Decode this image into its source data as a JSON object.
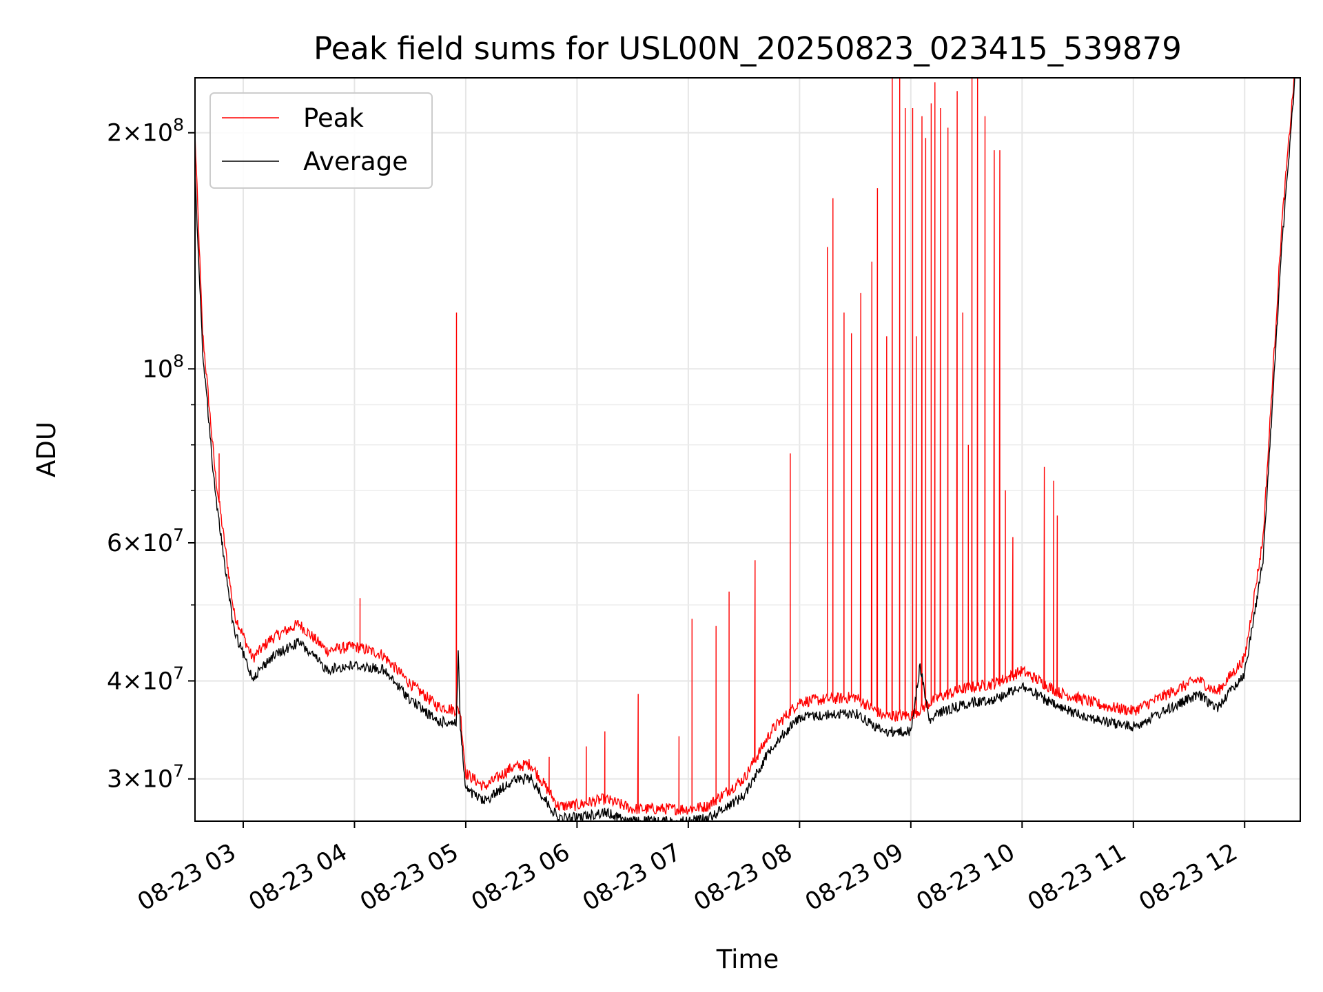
{
  "chart_data": {
    "type": "line",
    "title": "Peak field sums for USL00N_20250823_023415_539879",
    "xlabel": "Time",
    "ylabel": "ADU",
    "yscale": "log",
    "ylim": [
      26500000,
      235000000
    ],
    "xlim": [
      "2025-08-23 02:34",
      "2025-08-23 12:30"
    ],
    "grid": true,
    "legend_position": "upper left",
    "x_ticks": [
      {
        "t": "2025-08-23 03:00",
        "label": "08-23 03"
      },
      {
        "t": "2025-08-23 04:00",
        "label": "08-23 04"
      },
      {
        "t": "2025-08-23 05:00",
        "label": "08-23 05"
      },
      {
        "t": "2025-08-23 06:00",
        "label": "08-23 06"
      },
      {
        "t": "2025-08-23 07:00",
        "label": "08-23 07"
      },
      {
        "t": "2025-08-23 08:00",
        "label": "08-23 08"
      },
      {
        "t": "2025-08-23 09:00",
        "label": "08-23 09"
      },
      {
        "t": "2025-08-23 10:00",
        "label": "08-23 10"
      },
      {
        "t": "2025-08-23 11:00",
        "label": "08-23 11"
      },
      {
        "t": "2025-08-23 12:00",
        "label": "08-23 12"
      }
    ],
    "y_major_ticks": [
      {
        "v": 30000000,
        "mant": "3",
        "exp": "7"
      },
      {
        "v": 40000000,
        "mant": "4",
        "exp": "7"
      },
      {
        "v": 60000000,
        "mant": "6",
        "exp": "7"
      },
      {
        "v": 100000000,
        "mant": "",
        "exp": "8"
      },
      {
        "v": 200000000,
        "mant": "2",
        "exp": "8"
      }
    ],
    "y_minor_ticks": [
      50000000,
      70000000,
      80000000,
      90000000
    ],
    "series": [
      {
        "name": "Peak",
        "color": "#ff0000",
        "baseline": [
          [
            "2025-08-23 02:34",
            195000000
          ],
          [
            "2025-08-23 02:38",
            110000000
          ],
          [
            "2025-08-23 02:45",
            72000000
          ],
          [
            "2025-08-23 02:55",
            48000000
          ],
          [
            "2025-08-23 03:05",
            42000000
          ],
          [
            "2025-08-23 03:15",
            44500000
          ],
          [
            "2025-08-23 03:30",
            46500000
          ],
          [
            "2025-08-23 03:45",
            43000000
          ],
          [
            "2025-08-23 04:00",
            43500000
          ],
          [
            "2025-08-23 04:15",
            42500000
          ],
          [
            "2025-08-23 04:30",
            39000000
          ],
          [
            "2025-08-23 04:45",
            36500000
          ],
          [
            "2025-08-23 04:57",
            36000000
          ],
          [
            "2025-08-23 05:00",
            30000000
          ],
          [
            "2025-08-23 05:10",
            28800000
          ],
          [
            "2025-08-23 05:25",
            30500000
          ],
          [
            "2025-08-23 05:35",
            30800000
          ],
          [
            "2025-08-23 05:50",
            27200000
          ],
          [
            "2025-08-23 06:00",
            27300000
          ],
          [
            "2025-08-23 06:15",
            27800000
          ],
          [
            "2025-08-23 06:30",
            27000000
          ],
          [
            "2025-08-23 06:45",
            27000000
          ],
          [
            "2025-08-23 07:00",
            27000000
          ],
          [
            "2025-08-23 07:10",
            27200000
          ],
          [
            "2025-08-23 07:30",
            29500000
          ],
          [
            "2025-08-23 07:45",
            34000000
          ],
          [
            "2025-08-23 08:00",
            37000000
          ],
          [
            "2025-08-23 08:30",
            37500000
          ],
          [
            "2025-08-23 08:45",
            35500000
          ],
          [
            "2025-08-23 09:00",
            35500000
          ],
          [
            "2025-08-23 09:15",
            37500000
          ],
          [
            "2025-08-23 09:30",
            38500000
          ],
          [
            "2025-08-23 09:45",
            39000000
          ],
          [
            "2025-08-23 10:00",
            40500000
          ],
          [
            "2025-08-23 10:20",
            38000000
          ],
          [
            "2025-08-23 10:45",
            36500000
          ],
          [
            "2025-08-23 11:00",
            36000000
          ],
          [
            "2025-08-23 11:20",
            38000000
          ],
          [
            "2025-08-23 11:35",
            39500000
          ],
          [
            "2025-08-23 11:45",
            38000000
          ],
          [
            "2025-08-23 12:00",
            42000000
          ],
          [
            "2025-08-23 12:10",
            60000000
          ],
          [
            "2025-08-23 12:20",
            150000000
          ],
          [
            "2025-08-23 12:27",
            235000000
          ]
        ],
        "spikes": [
          [
            "2025-08-23 02:47",
            78000000
          ],
          [
            "2025-08-23 04:03",
            51000000
          ],
          [
            "2025-08-23 04:55",
            118000000
          ],
          [
            "2025-08-23 05:45",
            32000000
          ],
          [
            "2025-08-23 06:05",
            33000000
          ],
          [
            "2025-08-23 06:15",
            34500000
          ],
          [
            "2025-08-23 06:33",
            38500000
          ],
          [
            "2025-08-23 06:55",
            34000000
          ],
          [
            "2025-08-23 07:02",
            48000000
          ],
          [
            "2025-08-23 07:15",
            47000000
          ],
          [
            "2025-08-23 07:22",
            52000000
          ],
          [
            "2025-08-23 07:36",
            57000000
          ],
          [
            "2025-08-23 07:55",
            78000000
          ],
          [
            "2025-08-23 08:15",
            143000000
          ],
          [
            "2025-08-23 08:18",
            165000000
          ],
          [
            "2025-08-23 08:24",
            118000000
          ],
          [
            "2025-08-23 08:28",
            111000000
          ],
          [
            "2025-08-23 08:33",
            125000000
          ],
          [
            "2025-08-23 08:39",
            137000000
          ],
          [
            "2025-08-23 08:42",
            170000000
          ],
          [
            "2025-08-23 08:47",
            110000000
          ],
          [
            "2025-08-23 08:50",
            235000000
          ],
          [
            "2025-08-23 08:54",
            235000000
          ],
          [
            "2025-08-23 08:57",
            215000000
          ],
          [
            "2025-08-23 09:01",
            215000000
          ],
          [
            "2025-08-23 09:03",
            110000000
          ],
          [
            "2025-08-23 09:06",
            210000000
          ],
          [
            "2025-08-23 09:08",
            197000000
          ],
          [
            "2025-08-23 09:11",
            218000000
          ],
          [
            "2025-08-23 09:13",
            232000000
          ],
          [
            "2025-08-23 09:16",
            215000000
          ],
          [
            "2025-08-23 09:20",
            203000000
          ],
          [
            "2025-08-23 09:25",
            226000000
          ],
          [
            "2025-08-23 09:28",
            118000000
          ],
          [
            "2025-08-23 09:31",
            80000000
          ],
          [
            "2025-08-23 09:33",
            235000000
          ],
          [
            "2025-08-23 09:36",
            235000000
          ],
          [
            "2025-08-23 09:40",
            210000000
          ],
          [
            "2025-08-23 09:45",
            190000000
          ],
          [
            "2025-08-23 09:48",
            190000000
          ],
          [
            "2025-08-23 09:51",
            70000000
          ],
          [
            "2025-08-23 09:55",
            61000000
          ],
          [
            "2025-08-23 10:12",
            75000000
          ],
          [
            "2025-08-23 10:17",
            72000000
          ],
          [
            "2025-08-23 10:19",
            65000000
          ]
        ]
      },
      {
        "name": "Average",
        "color": "#000000",
        "points": [
          [
            "2025-08-23 02:34",
            180000000
          ],
          [
            "2025-08-23 02:38",
            108000000
          ],
          [
            "2025-08-23 02:45",
            70000000
          ],
          [
            "2025-08-23 02:55",
            47000000
          ],
          [
            "2025-08-23 03:05",
            41000000
          ],
          [
            "2025-08-23 03:15",
            43500000
          ],
          [
            "2025-08-23 03:30",
            45500000
          ],
          [
            "2025-08-23 03:45",
            42000000
          ],
          [
            "2025-08-23 04:00",
            42500000
          ],
          [
            "2025-08-23 04:15",
            42000000
          ],
          [
            "2025-08-23 04:30",
            38500000
          ],
          [
            "2025-08-23 04:45",
            36000000
          ],
          [
            "2025-08-23 04:55",
            36000000
          ],
          [
            "2025-08-23 04:56",
            45000000
          ],
          [
            "2025-08-23 04:57",
            35500000
          ],
          [
            "2025-08-23 05:00",
            29500000
          ],
          [
            "2025-08-23 05:10",
            28500000
          ],
          [
            "2025-08-23 05:25",
            30300000
          ],
          [
            "2025-08-23 05:35",
            30500000
          ],
          [
            "2025-08-23 05:50",
            27100000
          ],
          [
            "2025-08-23 06:00",
            27200000
          ],
          [
            "2025-08-23 06:15",
            27600000
          ],
          [
            "2025-08-23 06:30",
            26900000
          ],
          [
            "2025-08-23 06:45",
            26900000
          ],
          [
            "2025-08-23 07:00",
            26900000
          ],
          [
            "2025-08-23 07:10",
            27100000
          ],
          [
            "2025-08-23 07:30",
            29000000
          ],
          [
            "2025-08-23 07:45",
            33500000
          ],
          [
            "2025-08-23 08:00",
            36500000
          ],
          [
            "2025-08-23 08:30",
            37000000
          ],
          [
            "2025-08-23 08:45",
            35000000
          ],
          [
            "2025-08-23 09:00",
            35000000
          ],
          [
            "2025-08-23 09:05",
            42500000
          ],
          [
            "2025-08-23 09:10",
            36000000
          ],
          [
            "2025-08-23 09:15",
            37000000
          ],
          [
            "2025-08-23 09:30",
            38000000
          ],
          [
            "2025-08-23 09:45",
            38500000
          ],
          [
            "2025-08-23 10:00",
            40000000
          ],
          [
            "2025-08-23 10:20",
            37500000
          ],
          [
            "2025-08-23 10:45",
            36000000
          ],
          [
            "2025-08-23 11:00",
            35500000
          ],
          [
            "2025-08-23 11:20",
            37500000
          ],
          [
            "2025-08-23 11:35",
            39000000
          ],
          [
            "2025-08-23 11:45",
            37500000
          ],
          [
            "2025-08-23 12:00",
            41500000
          ],
          [
            "2025-08-23 12:10",
            58000000
          ],
          [
            "2025-08-23 12:20",
            145000000
          ],
          [
            "2025-08-23 12:27",
            235000000
          ]
        ]
      }
    ]
  }
}
